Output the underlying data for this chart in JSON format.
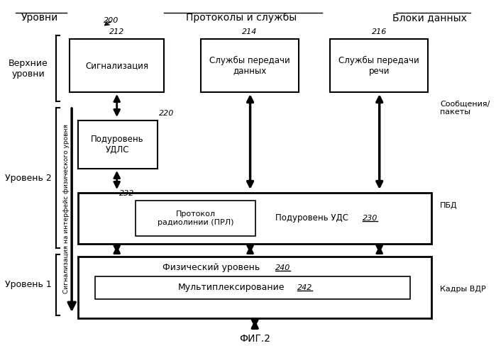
{
  "title_left": "Уровни",
  "title_center": "Протоколы и службы",
  "title_right": "Блоки данных",
  "fig_label": "200",
  "fig_caption": "ФИГ.2",
  "bg_color": "#ffffff",
  "box_color": "#ffffff",
  "border_color": "#000000",
  "boxes": {
    "signaling": {
      "label": "Сигнализация",
      "num": "212"
    },
    "data_services": {
      "label": "Службы передачи\nданных",
      "num": "214"
    },
    "voice_services": {
      "label": "Службы передачи\nречи",
      "num": "216"
    },
    "udlc": {
      "label": "Подуровень\nУДЛС",
      "num": "220"
    },
    "prl": {
      "label": "Протокол\nрадиолинии (ПРЛ)",
      "num": "232"
    },
    "uds": {
      "label": "Подуровень УДС",
      "num": "230"
    },
    "physical": {
      "label": "Физический уровень",
      "num": "240"
    },
    "mux": {
      "label": "Мультиплексирование",
      "num": "242"
    }
  },
  "level_labels": {
    "upper": "Верхние\nуровни",
    "level2": "Уровень 2",
    "level1": "Уровень 1"
  },
  "data_block_labels": {
    "messages": "Сообщения/\nпакеты",
    "pbd": "ПБД",
    "frames": "Кадры ВДР"
  },
  "side_arrow_label": "Сигнализация на интерфейс физического уровня"
}
